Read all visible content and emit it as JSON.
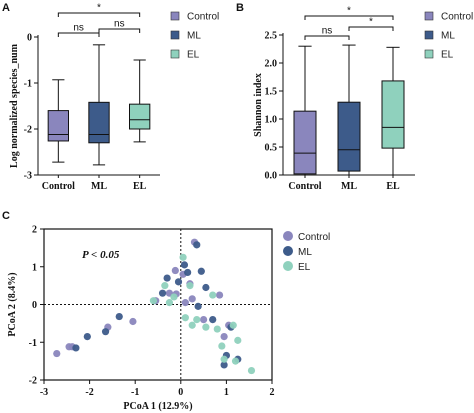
{
  "colors": {
    "Control": "#8a86bd",
    "ML": "#3d5b8a",
    "EL": "#8fd1bd"
  },
  "chart_data": [
    {
      "panel": "A",
      "type": "box",
      "ylabel": "Log normalized species_num",
      "ylim": [
        -3,
        0
      ],
      "yticks": [
        "-3",
        "-2",
        "-1",
        "0"
      ],
      "categories": [
        "Control",
        "ML",
        "EL"
      ],
      "boxes": [
        {
          "name": "Control",
          "min": -2.72,
          "q1": -2.26,
          "median": -2.12,
          "q3": -1.6,
          "max": -0.93
        },
        {
          "name": "ML",
          "min": -2.78,
          "q1": -2.3,
          "median": -2.12,
          "q3": -1.42,
          "max": -0.17
        },
        {
          "name": "EL",
          "min": -2.28,
          "q1": -2.0,
          "median": -1.8,
          "q3": -1.46,
          "max": -0.5
        }
      ],
      "significance": [
        {
          "from": "Control",
          "to": "EL",
          "label": "*"
        },
        {
          "from": "Control",
          "to": "ML",
          "label": "ns"
        },
        {
          "from": "ML",
          "to": "EL",
          "label": "ns"
        }
      ],
      "legend": [
        "Control",
        "ML",
        "EL"
      ]
    },
    {
      "panel": "B",
      "type": "box",
      "ylabel": "Shannon index",
      "ylim": [
        0,
        2.5
      ],
      "yticks": [
        "0.0",
        "0.5",
        "1.0",
        "1.5",
        "2.0",
        "2.5"
      ],
      "categories": [
        "Control",
        "ML",
        "EL"
      ],
      "boxes": [
        {
          "name": "Control",
          "min": 0.0,
          "q1": 0.02,
          "median": 0.39,
          "q3": 1.14,
          "max": 2.3
        },
        {
          "name": "ML",
          "min": 0.0,
          "q1": 0.07,
          "median": 0.45,
          "q3": 1.3,
          "max": 2.32
        },
        {
          "name": "EL",
          "min": 0.0,
          "q1": 0.48,
          "median": 0.85,
          "q3": 1.68,
          "max": 2.28
        }
      ],
      "significance": [
        {
          "from": "Control",
          "to": "EL",
          "label": "*"
        },
        {
          "from": "Control",
          "to": "ML",
          "label": "ns"
        },
        {
          "from": "ML",
          "to": "EL",
          "label": "*"
        }
      ],
      "legend": [
        "Control",
        "ML",
        "EL"
      ]
    },
    {
      "panel": "C",
      "type": "scatter",
      "xlabel": "PCoA 1 (12.9%)",
      "ylabel": "PCoA 2 (8.4%)",
      "xlim": [
        -3,
        2
      ],
      "ylim": [
        -2,
        2
      ],
      "xticks": [
        "-3",
        "-2",
        "-1",
        "0",
        "1",
        "2"
      ],
      "yticks": [
        "-2",
        "-1",
        "0",
        "1",
        "2"
      ],
      "annotation": "P < 0.05",
      "legend": [
        "Control",
        "ML",
        "EL"
      ],
      "series": [
        {
          "name": "Control",
          "points": [
            [
              -2.72,
              -1.3
            ],
            [
              -2.45,
              -1.12
            ],
            [
              -2.38,
              -1.12
            ],
            [
              -1.6,
              -0.6
            ],
            [
              -1.05,
              -0.45
            ],
            [
              -0.55,
              0.1
            ],
            [
              -0.25,
              0.3
            ],
            [
              -0.1,
              0.28
            ],
            [
              0.1,
              0.05
            ],
            [
              0.25,
              0.15
            ],
            [
              0.05,
              0.8
            ],
            [
              -0.12,
              0.9
            ],
            [
              0.3,
              1.65
            ],
            [
              0.95,
              -0.85
            ],
            [
              0.85,
              0.25
            ],
            [
              0.5,
              -0.4
            ],
            [
              1.05,
              -0.55
            ],
            [
              0.2,
              0.55
            ]
          ]
        },
        {
          "name": "ML",
          "points": [
            [
              -2.3,
              -1.15
            ],
            [
              -2.05,
              -0.85
            ],
            [
              -1.65,
              -0.72
            ],
            [
              -1.35,
              -0.32
            ],
            [
              -0.4,
              0.3
            ],
            [
              -0.05,
              0.6
            ],
            [
              0.08,
              1.05
            ],
            [
              0.35,
              1.58
            ],
            [
              0.45,
              0.88
            ],
            [
              0.55,
              0.45
            ],
            [
              0.38,
              -0.05
            ],
            [
              0.7,
              -0.4
            ],
            [
              1.1,
              -0.6
            ],
            [
              1.0,
              -1.35
            ],
            [
              1.25,
              -1.45
            ],
            [
              0.95,
              -1.6
            ],
            [
              -0.3,
              0.7
            ],
            [
              0.15,
              0.85
            ]
          ]
        },
        {
          "name": "EL",
          "points": [
            [
              -0.6,
              0.1
            ],
            [
              -0.35,
              0.5
            ],
            [
              -0.15,
              0.2
            ],
            [
              0.05,
              1.25
            ],
            [
              0.2,
              0.5
            ],
            [
              0.1,
              -0.35
            ],
            [
              0.35,
              -0.4
            ],
            [
              0.55,
              -0.6
            ],
            [
              0.8,
              -0.65
            ],
            [
              1.15,
              -0.55
            ],
            [
              1.25,
              -0.95
            ],
            [
              1.55,
              -1.75
            ],
            [
              1.2,
              -1.5
            ],
            [
              0.95,
              -1.45
            ],
            [
              0.9,
              -1.1
            ],
            [
              0.25,
              -0.55
            ],
            [
              -0.25,
              0.05
            ],
            [
              0.7,
              0.25
            ]
          ]
        }
      ]
    }
  ]
}
